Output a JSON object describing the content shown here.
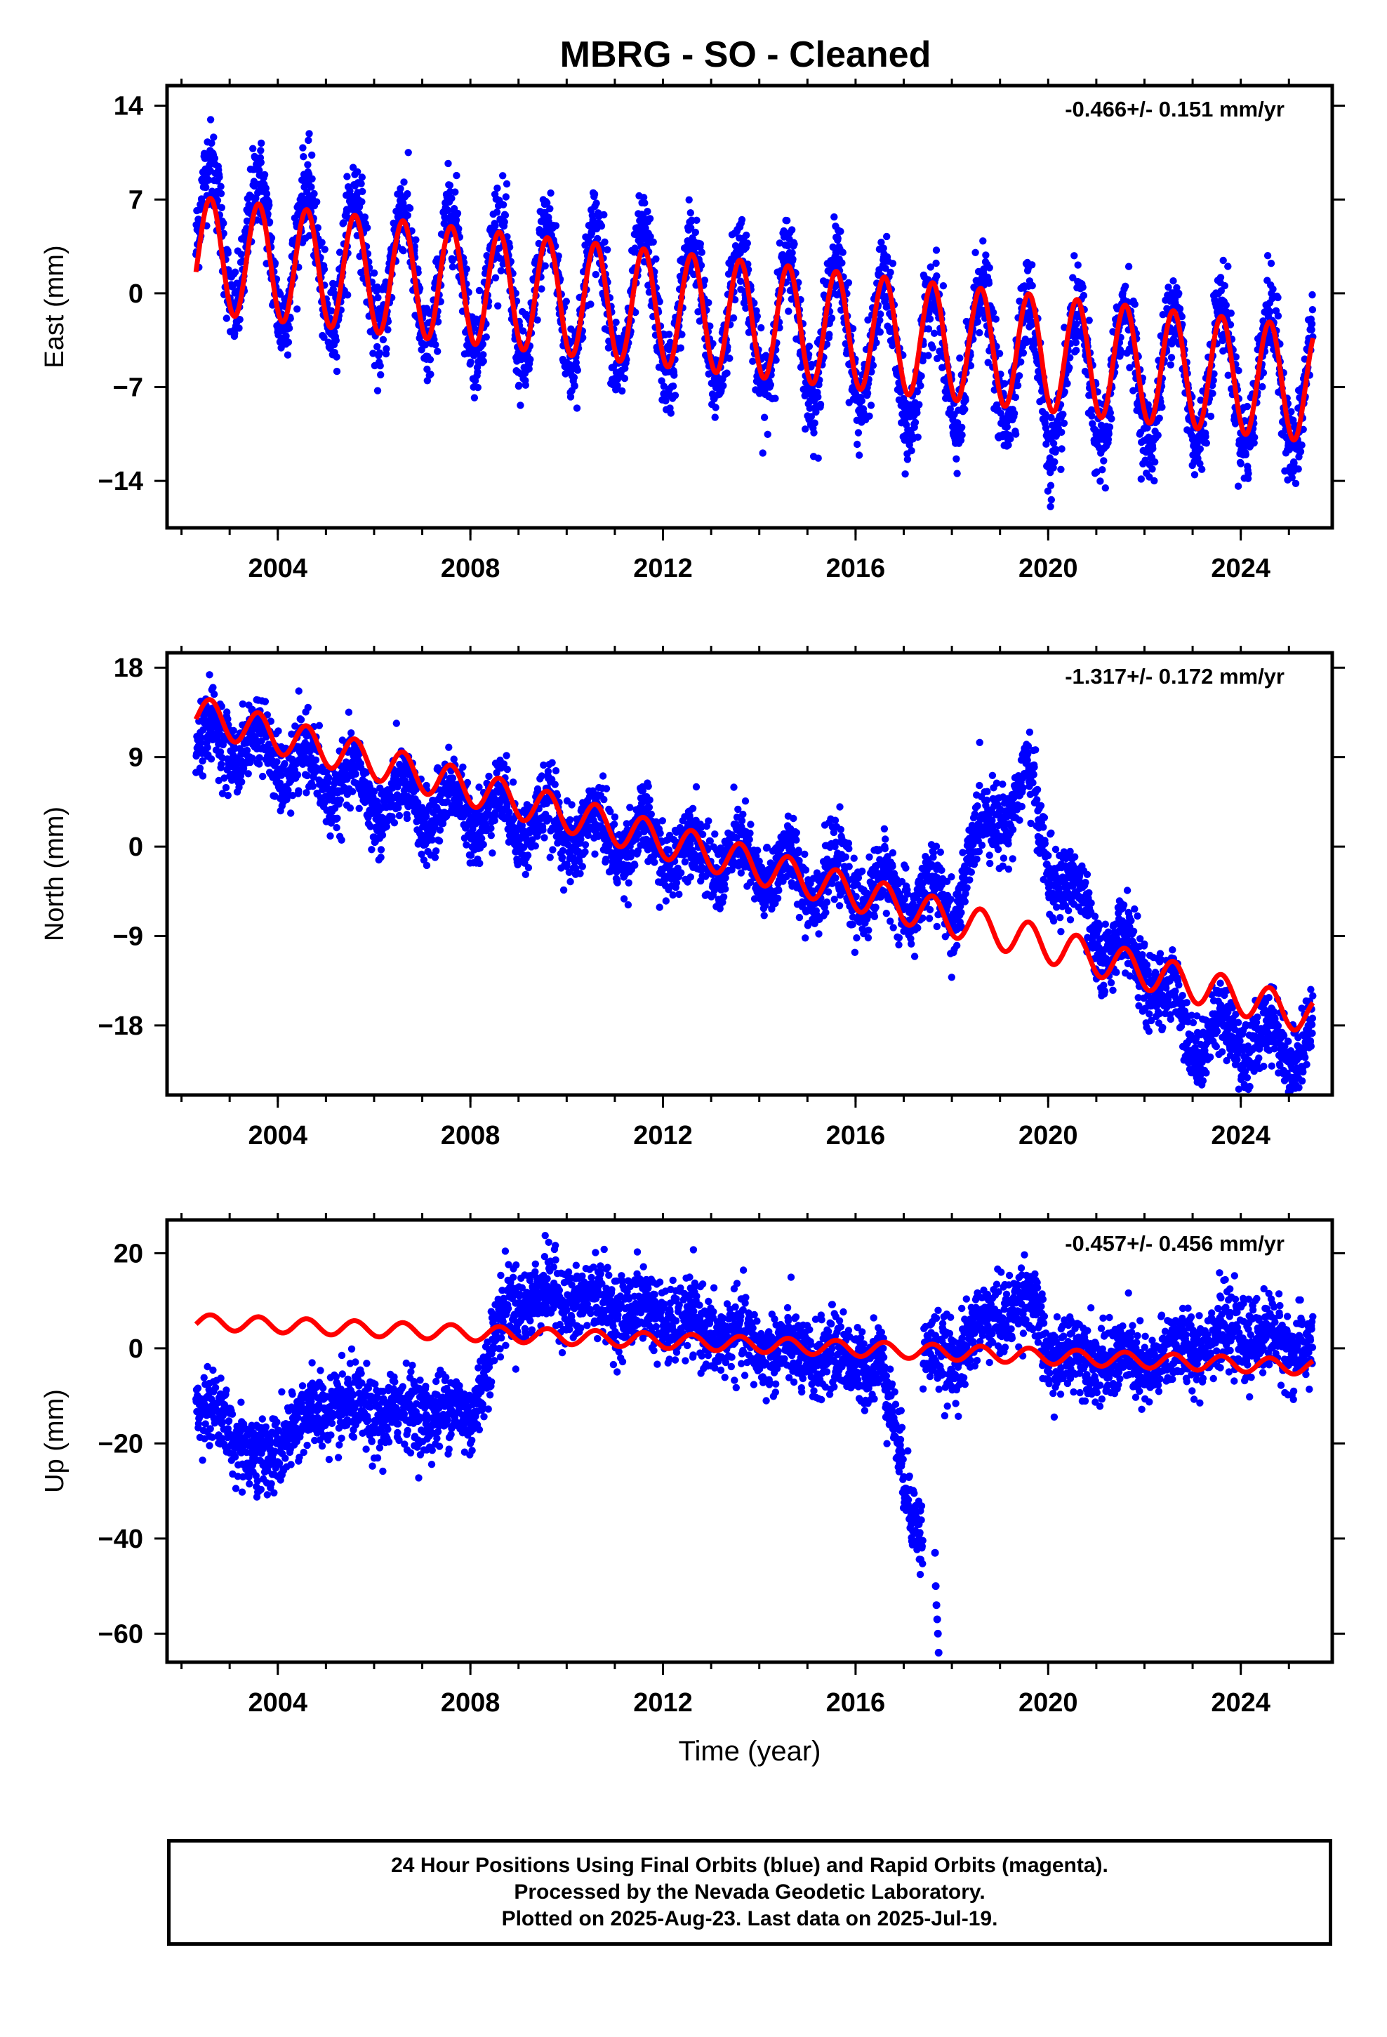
{
  "title": "MBRG  - SO - Cleaned",
  "colors": {
    "data": "#0000ff",
    "model": "#ff0000",
    "axis": "#000000"
  },
  "chart_data": [
    {
      "type": "scatter",
      "ylabel": "East (mm)",
      "xlabel": "",
      "annotation": "-0.466+/- 0.151 mm/yr",
      "xlim": [
        2001.7,
        2025.9
      ],
      "ylim": [
        -17.5,
        15.5
      ],
      "xticks": [
        2004,
        2008,
        2012,
        2016,
        2020,
        2024
      ],
      "yticks": [
        14,
        7,
        0,
        -7,
        -14
      ],
      "model": {
        "offset": 0.0,
        "trend": -0.466,
        "amplitude": 4.3,
        "phase": 0.35
      },
      "series": [
        {
          "values": [
            [
              2002.3,
              5
            ],
            [
              2003.0,
              4
            ],
            [
              2004.0,
              3
            ],
            [
              2005.0,
              2.5
            ],
            [
              2006.0,
              2
            ],
            [
              2007.0,
              1
            ],
            [
              2008.0,
              1
            ],
            [
              2009.0,
              0
            ],
            [
              2010.0,
              0
            ],
            [
              2011.0,
              -0.5
            ],
            [
              2012.0,
              -1
            ],
            [
              2013.0,
              -1.5
            ],
            [
              2014.0,
              -2
            ],
            [
              2015.0,
              -2.5
            ],
            [
              2016.0,
              -3
            ],
            [
              2017.0,
              -5
            ],
            [
              2018.0,
              -5
            ],
            [
              2019.0,
              -4
            ],
            [
              2020.0,
              -7
            ],
            [
              2021.0,
              -6
            ],
            [
              2022.0,
              -6
            ],
            [
              2023.0,
              -6
            ],
            [
              2024.0,
              -6
            ],
            [
              2025.0,
              -7
            ],
            [
              2025.5,
              -6
            ]
          ]
        }
      ]
    },
    {
      "type": "scatter",
      "ylabel": "North (mm)",
      "xlabel": "",
      "annotation": "-1.317+/- 0.172 mm/yr",
      "xlim": [
        2001.7,
        2025.9
      ],
      "ylim": [
        -25,
        19.5
      ],
      "xticks": [
        2004,
        2008,
        2012,
        2016,
        2020,
        2024
      ],
      "yticks": [
        18,
        9,
        0,
        -9,
        -18
      ],
      "model": {
        "offset": 0.0,
        "trend": -1.317,
        "amplitude": 1.8,
        "phase": 0.35
      },
      "series": [
        {
          "values": [
            [
              2002.3,
              10
            ],
            [
              2003.0,
              11
            ],
            [
              2004.0,
              9
            ],
            [
              2005.0,
              7
            ],
            [
              2006.0,
              5
            ],
            [
              2007.0,
              4
            ],
            [
              2008.0,
              4
            ],
            [
              2009.0,
              3
            ],
            [
              2010.0,
              2
            ],
            [
              2011.0,
              1
            ],
            [
              2012.0,
              0
            ],
            [
              2013.0,
              -1
            ],
            [
              2014.0,
              -2
            ],
            [
              2015.0,
              -3
            ],
            [
              2016.0,
              -4
            ],
            [
              2017.0,
              -5
            ],
            [
              2018.0,
              -6
            ],
            [
              2018.5,
              0
            ],
            [
              2019.0,
              4
            ],
            [
              2019.6,
              6
            ],
            [
              2020.0,
              -1
            ],
            [
              2021.0,
              -9
            ],
            [
              2022.0,
              -12
            ],
            [
              2023.0,
              -19
            ],
            [
              2024.0,
              -19
            ],
            [
              2025.0,
              -20
            ],
            [
              2025.5,
              -19
            ]
          ]
        }
      ]
    },
    {
      "type": "scatter",
      "ylabel": "Up (mm)",
      "xlabel": "Time (year)",
      "annotation": "-0.457+/- 0.456 mm/yr",
      "xlim": [
        2001.7,
        2025.9
      ],
      "ylim": [
        -66,
        27
      ],
      "xticks": [
        2004,
        2008,
        2012,
        2016,
        2020,
        2024
      ],
      "yticks": [
        20,
        0,
        -20,
        -40,
        -60
      ],
      "model": {
        "offset": 0.0,
        "trend": -0.457,
        "amplitude": 1.6,
        "phase": 0.35
      },
      "series": [
        {
          "values": [
            [
              2002.3,
              -12
            ],
            [
              2003.0,
              -16
            ],
            [
              2003.6,
              -25
            ],
            [
              2004.2,
              -18
            ],
            [
              2005.0,
              -12
            ],
            [
              2006.0,
              -14
            ],
            [
              2007.0,
              -13
            ],
            [
              2008.0,
              -14
            ],
            [
              2008.8,
              10
            ],
            [
              2009.5,
              11
            ],
            [
              2010.5,
              10
            ],
            [
              2011.5,
              8
            ],
            [
              2012.5,
              5
            ],
            [
              2013.5,
              2
            ],
            [
              2014.5,
              -1
            ],
            [
              2015.5,
              -2
            ],
            [
              2016.5,
              -3
            ],
            [
              2017.7,
              -55
            ],
            [
              2018.0,
              -2
            ],
            [
              2019.0,
              8
            ],
            [
              2019.6,
              10
            ],
            [
              2020.0,
              -1
            ],
            [
              2021.0,
              -2
            ],
            [
              2022.0,
              -4
            ],
            [
              2023.0,
              1
            ],
            [
              2024.0,
              3
            ],
            [
              2025.0,
              1
            ],
            [
              2025.5,
              0
            ]
          ]
        }
      ]
    }
  ],
  "footer": {
    "line1": "24 Hour Positions Using Final Orbits (blue) and Rapid Orbits (magenta).",
    "line2": "Processed by the Nevada Geodetic Laboratory.",
    "line3": "Plotted on 2025-Aug-23. Last data on 2025-Jul-19."
  }
}
